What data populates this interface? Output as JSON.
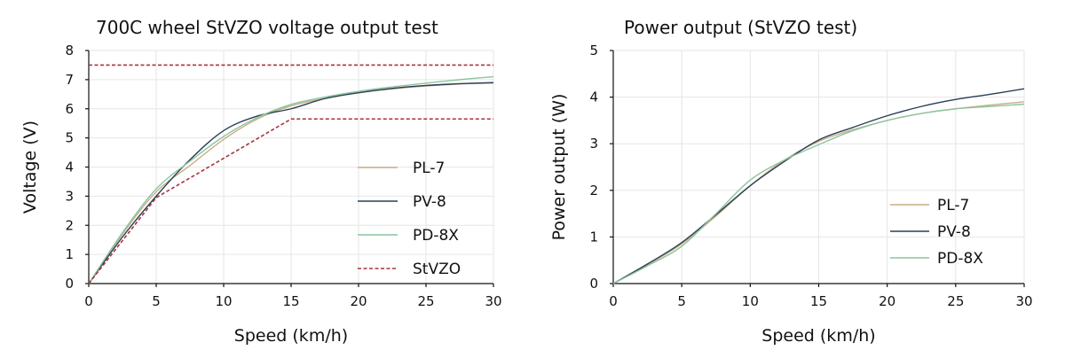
{
  "chart_data": [
    {
      "type": "line",
      "title": "700C wheel StVZO voltage output test",
      "xlabel": "Speed (km/h)",
      "ylabel": "Voltage (V)",
      "xlim": [
        0,
        30
      ],
      "ylim": [
        0,
        8
      ],
      "xticks": [
        "0",
        "5",
        "10",
        "15",
        "20",
        "25",
        "30"
      ],
      "yticks": [
        "0",
        "1",
        "2",
        "3",
        "4",
        "5",
        "6",
        "7",
        "8"
      ],
      "grid": true,
      "legend_position": "right",
      "series": [
        {
          "name": "PL-7",
          "color": "#c9ad86",
          "style": "solid",
          "x": [
            0,
            2.5,
            5,
            7.5,
            10,
            12.5,
            15,
            17.5,
            20,
            22.5,
            25,
            27.5,
            30
          ],
          "y": [
            0,
            1.7,
            3.15,
            4.05,
            4.95,
            5.65,
            6.1,
            6.35,
            6.55,
            6.68,
            6.78,
            6.85,
            6.88
          ]
        },
        {
          "name": "PV-8",
          "color": "#2a3f55",
          "style": "solid",
          "x": [
            0,
            2.5,
            5,
            7.5,
            10,
            12.5,
            15,
            17.5,
            20,
            22.5,
            25,
            27.5,
            30
          ],
          "y": [
            0,
            1.6,
            3.0,
            4.25,
            5.25,
            5.75,
            6.0,
            6.35,
            6.55,
            6.7,
            6.8,
            6.86,
            6.9
          ]
        },
        {
          "name": "PD-8X",
          "color": "#8cc4a0",
          "style": "solid",
          "x": [
            0,
            2.5,
            5,
            7.5,
            10,
            12.5,
            15,
            17.5,
            20,
            22.5,
            25,
            27.5,
            30
          ],
          "y": [
            0,
            1.75,
            3.25,
            4.2,
            5.05,
            5.7,
            6.15,
            6.4,
            6.6,
            6.75,
            6.88,
            7.0,
            7.1
          ]
        },
        {
          "name": "StVZO",
          "color": "#a8323e",
          "style": "dashed",
          "x": [
            0,
            5,
            15,
            30
          ],
          "y": [
            0,
            2.95,
            5.65,
            5.65
          ]
        },
        {
          "name": "",
          "color": "#a8323e",
          "style": "dashed",
          "x": [
            0,
            30
          ],
          "y": [
            7.5,
            7.5
          ]
        }
      ]
    },
    {
      "type": "line",
      "title": "Power output (StVZO test)",
      "xlabel": "Speed (km/h)",
      "ylabel": "Power output (W)",
      "xlim": [
        0,
        30
      ],
      "ylim": [
        0,
        5
      ],
      "xticks": [
        "0",
        "5",
        "10",
        "15",
        "20",
        "25",
        "30"
      ],
      "yticks": [
        "0",
        "1",
        "2",
        "3",
        "4",
        "5"
      ],
      "grid": true,
      "legend_position": "bottom-right",
      "series": [
        {
          "name": "PL-7",
          "color": "#c9ad86",
          "style": "solid",
          "x": [
            0,
            2.5,
            5,
            7.5,
            10,
            12.5,
            15,
            17.5,
            20,
            22.5,
            25,
            27.5,
            30
          ],
          "y": [
            0,
            0.4,
            0.85,
            1.45,
            2.1,
            2.65,
            3.05,
            3.3,
            3.5,
            3.65,
            3.75,
            3.83,
            3.9
          ]
        },
        {
          "name": "PV-8",
          "color": "#2a3f55",
          "style": "solid",
          "x": [
            0,
            2.5,
            5,
            7.5,
            10,
            12.5,
            15,
            17.5,
            20,
            22.5,
            25,
            27.5,
            30
          ],
          "y": [
            0,
            0.42,
            0.88,
            1.48,
            2.1,
            2.62,
            3.08,
            3.35,
            3.6,
            3.8,
            3.95,
            4.06,
            4.18
          ]
        },
        {
          "name": "PD-8X",
          "color": "#8cc4a0",
          "style": "solid",
          "x": [
            0,
            2.5,
            5,
            7.5,
            10,
            12.5,
            15,
            17.5,
            20,
            22.5,
            25,
            27.5,
            30
          ],
          "y": [
            0,
            0.38,
            0.8,
            1.5,
            2.22,
            2.65,
            2.98,
            3.28,
            3.5,
            3.65,
            3.75,
            3.8,
            3.85
          ]
        }
      ]
    }
  ]
}
